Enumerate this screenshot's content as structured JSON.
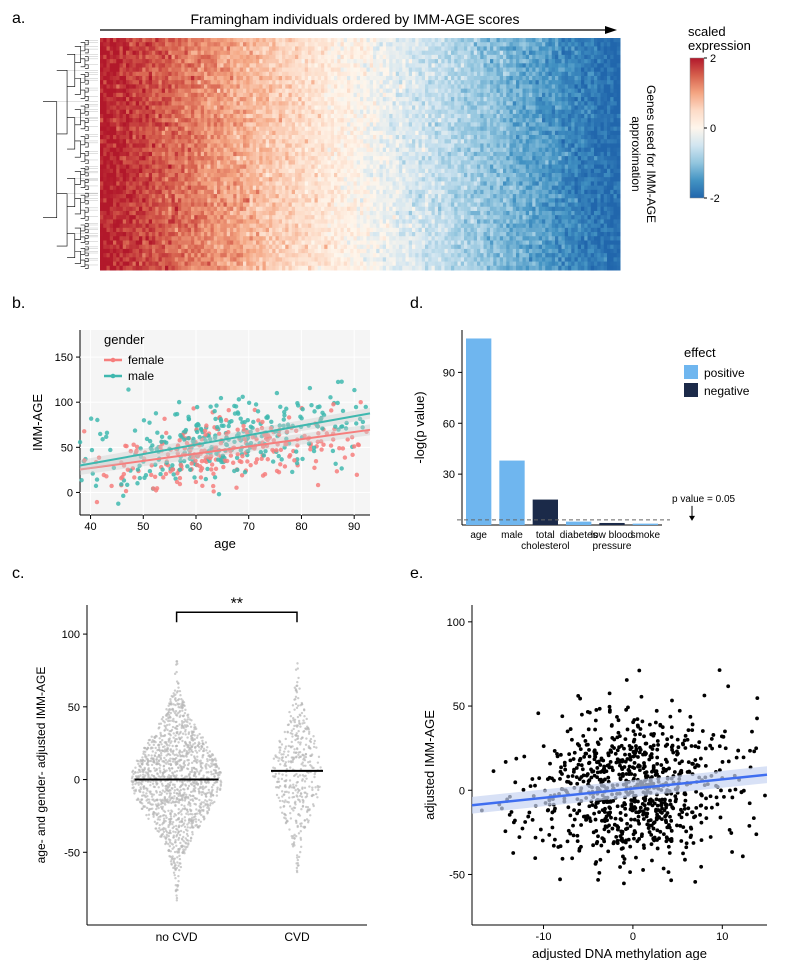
{
  "panel_a": {
    "label": "a.",
    "top_title": "Framingham individuals ordered by IMM-AGE scores",
    "right_label": "Genes used for IMM-AGE approximation",
    "colorbar": {
      "title": "scaled expression",
      "labels": [
        "2",
        "0",
        "-2"
      ],
      "colors_stops": [
        "#b2182b",
        "#d6604d",
        "#f4a582",
        "#fddbc7",
        "#fef6ec",
        "#d1e5f0",
        "#92c5de",
        "#4393c3",
        "#2166ac"
      ]
    },
    "heatmap": {
      "rows": 60,
      "cols": 300,
      "gradient_left": "#d6604d",
      "gradient_mid": "#fddbc7",
      "gradient_right": "#4393c3",
      "noise_amplitude": 0.5,
      "background": "#ffffff"
    }
  },
  "panel_b": {
    "label": "b.",
    "type": "scatter",
    "xlabel": "age",
    "ylabel": "IMM-AGE",
    "legend_title": "gender",
    "legend_items": [
      {
        "label": "female",
        "color": "#f67e7d"
      },
      {
        "label": "male",
        "color": "#3fb8af"
      }
    ],
    "xlim": [
      38,
      93
    ],
    "ylim": [
      -25,
      180
    ],
    "xticks": [
      40,
      50,
      60,
      70,
      80,
      90
    ],
    "yticks": [
      0,
      50,
      100,
      150
    ],
    "n_points": 600,
    "x_center": 65,
    "x_spread": 14,
    "female": {
      "slope": 0.8,
      "intercept": -5,
      "noise": 20,
      "color": "#f67e7d"
    },
    "male": {
      "slope": 1.05,
      "intercept": -10,
      "noise": 22,
      "color": "#3fb8af"
    },
    "ribbon_color": "#cccccc",
    "ribbon_opacity": 0.4
  },
  "panel_c": {
    "label": "c.",
    "type": "beeswarm",
    "ylabel": "age- and gender- adjusted IMM-AGE",
    "groups": [
      "no CVD",
      "CVD"
    ],
    "ylim": [
      -100,
      120
    ],
    "yticks": [
      -50,
      0,
      50,
      100
    ],
    "sig_marker": "**",
    "points": {
      "color": "#b8b8b8",
      "n1": 1400,
      "n2": 400,
      "center1": 0,
      "center2": 5,
      "spread": 28
    },
    "median_lines": {
      "g1": 0,
      "g2": 6
    }
  },
  "panel_d": {
    "label": "d.",
    "type": "bar",
    "ylabel": "-log(p value)",
    "legend_title": "effect",
    "legend_items": [
      {
        "label": "positive",
        "color": "#6fb6ef"
      },
      {
        "label": "negative",
        "color": "#1b2a49"
      }
    ],
    "categories": [
      "age",
      "male",
      "total\ncholesterol",
      "diabetes",
      "low blood\npressure",
      "smoke"
    ],
    "values": [
      110,
      38,
      15,
      2,
      1.2,
      0.8
    ],
    "colors": [
      "#6fb6ef",
      "#6fb6ef",
      "#1b2a49",
      "#6fb6ef",
      "#1b2a49",
      "#6fb6ef"
    ],
    "ylim": [
      0,
      115
    ],
    "yticks": [
      30,
      60,
      90
    ],
    "threshold": {
      "value": 3,
      "label": "p value = 0.05"
    }
  },
  "panel_e": {
    "label": "e.",
    "type": "scatter",
    "xlabel": "adjusted DNA methylation age",
    "ylabel": "adjusted IMM-AGE",
    "xlim": [
      -18,
      15
    ],
    "ylim": [
      -80,
      110
    ],
    "xticks": [
      -10,
      0,
      10
    ],
    "yticks": [
      -50,
      0,
      50,
      100
    ],
    "n_points": 900,
    "point_color": "#000000",
    "fit": {
      "slope": 0.55,
      "intercept": 1,
      "color": "#3f6ef0",
      "ribbon": "#c8d4f2"
    }
  }
}
